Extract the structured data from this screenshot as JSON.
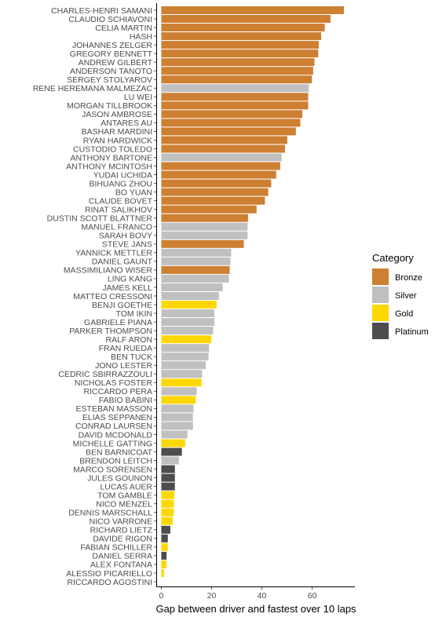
{
  "chart_data": {
    "type": "bar",
    "orientation": "horizontal",
    "xlabel": "Gap between driver and fastest over 10 laps",
    "ylabel": "",
    "xlim": [
      -2,
      77
    ],
    "xticks": [
      0,
      20,
      40,
      60
    ],
    "legend": {
      "title": "Category",
      "position": "right",
      "entries": [
        {
          "label": "Bronze",
          "color": "#cd7f32"
        },
        {
          "label": "Silver",
          "color": "#c0c0c0"
        },
        {
          "label": "Gold",
          "color": "#ffd700"
        },
        {
          "label": "Platinum",
          "color": "#4d4d4d"
        }
      ]
    },
    "category_colors": {
      "Bronze": "#cd7f32",
      "Silver": "#c0c0c0",
      "Gold": "#ffd700",
      "Platinum": "#4d4d4d"
    },
    "bars": [
      {
        "driver": "CHARLES-HENRI SAMANI",
        "value": 72.6,
        "category": "Bronze"
      },
      {
        "driver": "CLAUDIO SCHIAVONI",
        "value": 67.3,
        "category": "Bronze"
      },
      {
        "driver": "CELIA MARTIN",
        "value": 65.0,
        "category": "Bronze"
      },
      {
        "driver": "HASH",
        "value": 63.6,
        "category": "Bronze"
      },
      {
        "driver": "JOHANNES ZELGER",
        "value": 62.6,
        "category": "Bronze"
      },
      {
        "driver": "GREGORY BENNETT",
        "value": 62.4,
        "category": "Bronze"
      },
      {
        "driver": "ANDREW GILBERT",
        "value": 60.9,
        "category": "Bronze"
      },
      {
        "driver": "ANDERSON TANOTO",
        "value": 60.4,
        "category": "Bronze"
      },
      {
        "driver": "SERGEY STOLYAROV",
        "value": 59.9,
        "category": "Bronze"
      },
      {
        "driver": "RENE HEREMANA MALMEZAC",
        "value": 58.7,
        "category": "Silver"
      },
      {
        "driver": "LU WEI",
        "value": 58.4,
        "category": "Bronze"
      },
      {
        "driver": "MORGAN TILLBROOK",
        "value": 58.4,
        "category": "Bronze"
      },
      {
        "driver": "JASON AMBROSE",
        "value": 56.1,
        "category": "Bronze"
      },
      {
        "driver": "ANTARES AU",
        "value": 55.3,
        "category": "Bronze"
      },
      {
        "driver": "BASHAR MARDINI",
        "value": 53.5,
        "category": "Bronze"
      },
      {
        "driver": "RYAN HARDWICK",
        "value": 50.1,
        "category": "Bronze"
      },
      {
        "driver": "CUSTODIO TOLEDO",
        "value": 49.2,
        "category": "Bronze"
      },
      {
        "driver": "ANTHONY BARTONE",
        "value": 47.9,
        "category": "Silver"
      },
      {
        "driver": "ANTHONY MCINTOSH",
        "value": 47.3,
        "category": "Bronze"
      },
      {
        "driver": "YUDAI UCHIDA",
        "value": 45.7,
        "category": "Bronze"
      },
      {
        "driver": "BIHUANG ZHOU",
        "value": 43.7,
        "category": "Bronze"
      },
      {
        "driver": "BO YUAN",
        "value": 42.5,
        "category": "Bronze"
      },
      {
        "driver": "CLAUDE BOVET",
        "value": 41.2,
        "category": "Bronze"
      },
      {
        "driver": "RINAT SALIKHOV",
        "value": 37.9,
        "category": "Bronze"
      },
      {
        "driver": "DUSTIN SCOTT BLATTNER",
        "value": 34.5,
        "category": "Bronze"
      },
      {
        "driver": "MANUEL FRANCO",
        "value": 34.3,
        "category": "Silver"
      },
      {
        "driver": "SARAH BOVY",
        "value": 34.3,
        "category": "Silver"
      },
      {
        "driver": "STEVE JANS",
        "value": 32.8,
        "category": "Bronze"
      },
      {
        "driver": "YANNICK METTLER",
        "value": 27.8,
        "category": "Silver"
      },
      {
        "driver": "DANIEL GAUNT",
        "value": 27.5,
        "category": "Silver"
      },
      {
        "driver": "MASSIMILIANO WISER",
        "value": 27.2,
        "category": "Bronze"
      },
      {
        "driver": "LING KANG",
        "value": 26.9,
        "category": "Silver"
      },
      {
        "driver": "JAMES KELL",
        "value": 24.4,
        "category": "Silver"
      },
      {
        "driver": "MATTEO CRESSONI",
        "value": 22.9,
        "category": "Silver"
      },
      {
        "driver": "BENJI GOETHE",
        "value": 22.0,
        "category": "Gold"
      },
      {
        "driver": "TOM IKIN",
        "value": 21.1,
        "category": "Silver"
      },
      {
        "driver": "GABRIELE PIANA",
        "value": 21.1,
        "category": "Silver"
      },
      {
        "driver": "PARKER THOMPSON",
        "value": 20.6,
        "category": "Silver"
      },
      {
        "driver": "RALF ARON",
        "value": 19.9,
        "category": "Gold"
      },
      {
        "driver": "FRAN RUEDA",
        "value": 19.0,
        "category": "Silver"
      },
      {
        "driver": "BEN TUCK",
        "value": 18.8,
        "category": "Silver"
      },
      {
        "driver": "JONO LESTER",
        "value": 17.7,
        "category": "Silver"
      },
      {
        "driver": "CEDRIC SBIRRAZZOULI",
        "value": 16.2,
        "category": "Silver"
      },
      {
        "driver": "NICHOLAS FOSTER",
        "value": 16.0,
        "category": "Gold"
      },
      {
        "driver": "RICCARDO PERA",
        "value": 14.1,
        "category": "Silver"
      },
      {
        "driver": "FABIO BABINI",
        "value": 13.7,
        "category": "Gold"
      },
      {
        "driver": "ESTEBAN MASSON",
        "value": 12.8,
        "category": "Silver"
      },
      {
        "driver": "ELIAS SEPPANEN",
        "value": 12.6,
        "category": "Silver"
      },
      {
        "driver": "CONRAD LAURSEN",
        "value": 12.6,
        "category": "Silver"
      },
      {
        "driver": "DAVID MCDONALD",
        "value": 10.4,
        "category": "Silver"
      },
      {
        "driver": "MICHELLE GATTING",
        "value": 9.5,
        "category": "Gold"
      },
      {
        "driver": "BEN BARNICOAT",
        "value": 8.2,
        "category": "Platinum"
      },
      {
        "driver": "BRENDON LEITCH",
        "value": 7.0,
        "category": "Silver"
      },
      {
        "driver": "MARCO SORENSEN",
        "value": 5.4,
        "category": "Platinum"
      },
      {
        "driver": "JULES GOUNON",
        "value": 5.4,
        "category": "Platinum"
      },
      {
        "driver": "LUCAS AUER",
        "value": 5.4,
        "category": "Platinum"
      },
      {
        "driver": "TOM GAMBLE",
        "value": 5.2,
        "category": "Gold"
      },
      {
        "driver": "NICO MENZEL",
        "value": 5.0,
        "category": "Gold"
      },
      {
        "driver": "DENNIS MARSCHALL",
        "value": 5.0,
        "category": "Gold"
      },
      {
        "driver": "NICO VARRONE",
        "value": 4.5,
        "category": "Gold"
      },
      {
        "driver": "RICHARD LIETZ",
        "value": 3.6,
        "category": "Platinum"
      },
      {
        "driver": "DAVIDE RIGON",
        "value": 2.6,
        "category": "Platinum"
      },
      {
        "driver": "FABIAN SCHILLER",
        "value": 2.6,
        "category": "Gold"
      },
      {
        "driver": "DANIEL SERRA",
        "value": 2.1,
        "category": "Platinum"
      },
      {
        "driver": "ALEX FONTANA",
        "value": 2.0,
        "category": "Gold"
      },
      {
        "driver": "ALESSIO PICARIELLO",
        "value": 1.1,
        "category": "Gold"
      },
      {
        "driver": "RICCARDO AGOSTINI",
        "value": 0.0,
        "category": "Gold"
      }
    ]
  }
}
